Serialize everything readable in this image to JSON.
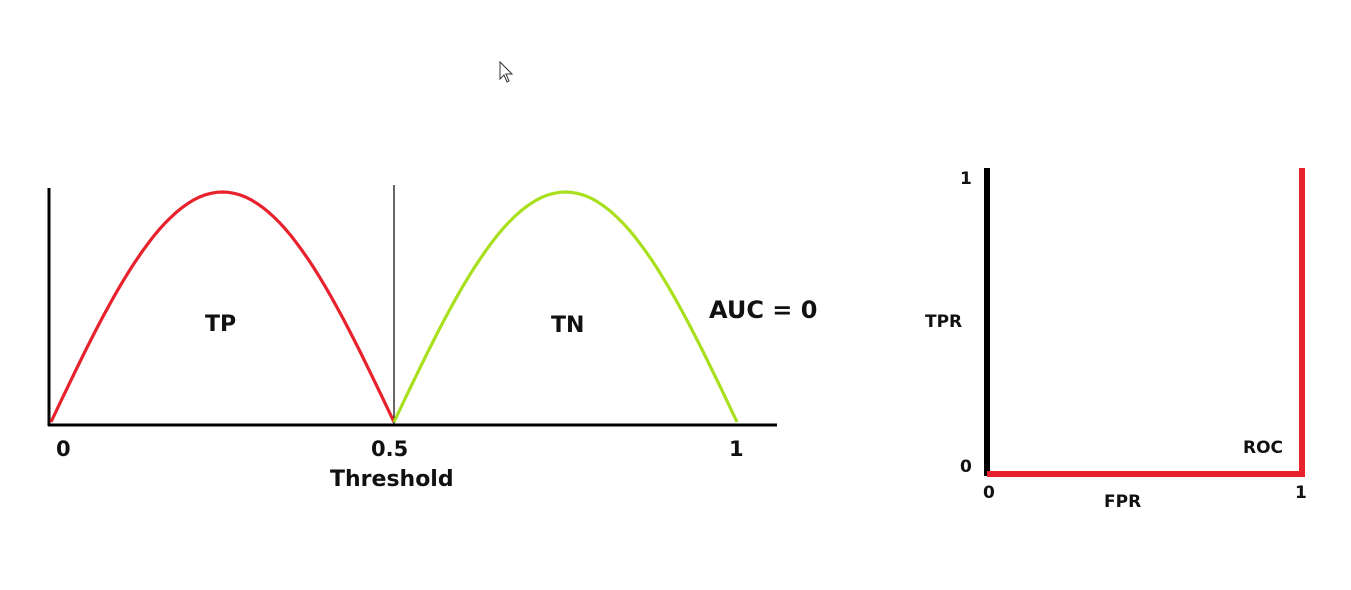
{
  "left_chart": {
    "regions": [
      {
        "label": "TP",
        "color": "#e8222d"
      },
      {
        "label": "TN",
        "color": "#a8e01e"
      }
    ],
    "ticks": [
      "0",
      "0.5",
      "1"
    ],
    "xlabel": "Threshold",
    "annotation": "AUC = 0"
  },
  "roc_chart": {
    "ylabel": "TPR",
    "xlabel": "FPR",
    "y_ticks": [
      "0",
      "1"
    ],
    "x_ticks": [
      "0",
      "1"
    ],
    "curve_label": "ROC",
    "curve_color": "#e8222d",
    "axis_color": "#000000"
  },
  "chart_data": [
    {
      "type": "line",
      "title": "",
      "xlabel": "Threshold",
      "ylabel": "",
      "xlim": [
        0,
        1
      ],
      "series": [
        {
          "name": "TP",
          "x": [
            0,
            0.25,
            0.5
          ],
          "y": [
            0,
            1,
            0
          ]
        },
        {
          "name": "TN",
          "x": [
            0.5,
            0.75,
            1
          ],
          "y": [
            0,
            1,
            0
          ]
        }
      ],
      "threshold": 0.5,
      "annotation": "AUC = 0"
    },
    {
      "type": "line",
      "title": "",
      "xlabel": "FPR",
      "ylabel": "TPR",
      "xlim": [
        0,
        1
      ],
      "ylim": [
        0,
        1
      ],
      "series": [
        {
          "name": "ROC",
          "x": [
            0,
            1,
            1
          ],
          "y": [
            0,
            0,
            1
          ]
        }
      ]
    }
  ]
}
